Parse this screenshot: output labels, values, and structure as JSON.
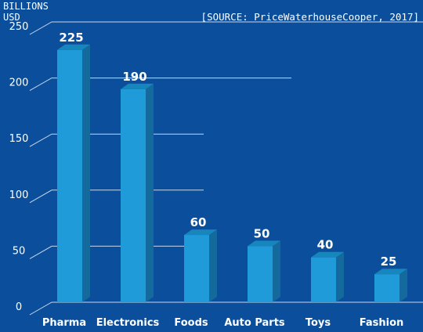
{
  "chart_data": {
    "type": "bar",
    "title": "",
    "source_note": "[SOURCE: PriceWaterhouseCooper, 2017]",
    "ylabel": "BILLIONS USD",
    "ylabel_line1": "BILLIONS",
    "ylabel_line2": "USD",
    "ylim": [
      0,
      250
    ],
    "yticks": [
      "0",
      "50",
      "100",
      "150",
      "200",
      "250"
    ],
    "categories": [
      "Pharma",
      "Electronics",
      "Foods",
      "Auto Parts",
      "Toys",
      "Fashion"
    ],
    "values": [
      225,
      190,
      60,
      50,
      40,
      25
    ],
    "data_labels": [
      "225",
      "190",
      "60",
      "50",
      "40",
      "25"
    ],
    "grid": true,
    "colors": {
      "background": "#0b4f9c",
      "bar_front": "#1f9bd9",
      "bar_side": "#146a9c",
      "bar_top": "#1786bd",
      "grid": "#c8d6ea",
      "text": "#ffffff"
    }
  }
}
